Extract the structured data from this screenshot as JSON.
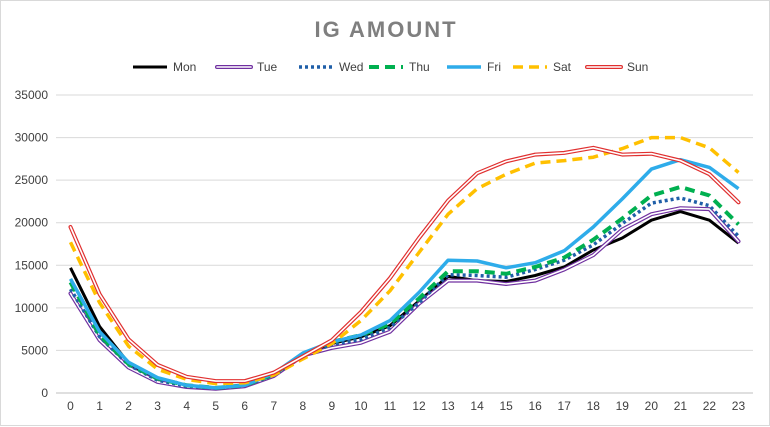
{
  "chart_data": {
    "type": "line",
    "title": "IG AMOUNT",
    "xlabel": "",
    "ylabel": "",
    "x": [
      0,
      1,
      2,
      3,
      4,
      5,
      6,
      7,
      8,
      9,
      10,
      11,
      12,
      13,
      14,
      15,
      16,
      17,
      18,
      19,
      20,
      21,
      22,
      23
    ],
    "ylim": [
      0,
      35000
    ],
    "yticks": [
      0,
      5000,
      10000,
      15000,
      20000,
      25000,
      30000,
      35000
    ],
    "grid": "horizontal",
    "legend_position": "top",
    "series": [
      {
        "name": "Mon",
        "color": "#000000",
        "dash": "solid",
        "width": 3,
        "values": [
          14700,
          7800,
          3500,
          1500,
          800,
          500,
          800,
          2000,
          4500,
          5800,
          6600,
          7900,
          10800,
          13700,
          13200,
          13100,
          13800,
          14800,
          16800,
          18200,
          20300,
          21300,
          20300,
          17600
        ]
      },
      {
        "name": "Tue",
        "color": "#7030a0",
        "dash": "double",
        "width": 1,
        "values": [
          11700,
          6200,
          3000,
          1300,
          700,
          500,
          800,
          2000,
          4400,
          5300,
          5900,
          7200,
          10500,
          13200,
          13200,
          12800,
          13200,
          14500,
          16200,
          19200,
          21000,
          21700,
          21600,
          17800
        ]
      },
      {
        "name": "Wed",
        "color": "#1f5fa8",
        "dash": "dot",
        "width": 3.5,
        "values": [
          12200,
          6600,
          3300,
          1500,
          800,
          600,
          900,
          2100,
          4500,
          5700,
          6300,
          7700,
          10600,
          13900,
          13800,
          13600,
          14500,
          15600,
          17400,
          19900,
          22300,
          22900,
          22000,
          18400
        ]
      },
      {
        "name": "Thu",
        "color": "#00b050",
        "dash": "dash",
        "width": 4,
        "values": [
          13000,
          6800,
          3400,
          1700,
          900,
          600,
          900,
          2200,
          4600,
          6000,
          6800,
          8100,
          11100,
          14300,
          14300,
          14000,
          14800,
          15900,
          18000,
          20500,
          23200,
          24200,
          23200,
          19800
        ]
      },
      {
        "name": "Fri",
        "color": "#2eacea",
        "dash": "solid",
        "width": 3.5,
        "values": [
          13400,
          7200,
          3600,
          1800,
          900,
          600,
          900,
          2300,
          4700,
          6000,
          6800,
          8500,
          11800,
          15600,
          15500,
          14700,
          15300,
          16700,
          19500,
          22800,
          26300,
          27400,
          26500,
          24000
        ]
      },
      {
        "name": "Sat",
        "color": "#ffc000",
        "dash": "dash",
        "width": 3.5,
        "values": [
          17700,
          10600,
          5500,
          2800,
          1600,
          1100,
          1200,
          2100,
          4000,
          5800,
          8500,
          12000,
          16500,
          21000,
          24000,
          25700,
          27000,
          27300,
          27700,
          28700,
          30000,
          30000,
          28800,
          25900
        ]
      },
      {
        "name": "Sun",
        "color": "#e03030",
        "dash": "double",
        "width": 1,
        "values": [
          19500,
          11600,
          6300,
          3300,
          1900,
          1400,
          1400,
          2400,
          4300,
          6200,
          9500,
          13500,
          18200,
          22600,
          25800,
          27200,
          28000,
          28200,
          28800,
          28000,
          28100,
          27300,
          25700,
          22400
        ]
      }
    ]
  }
}
